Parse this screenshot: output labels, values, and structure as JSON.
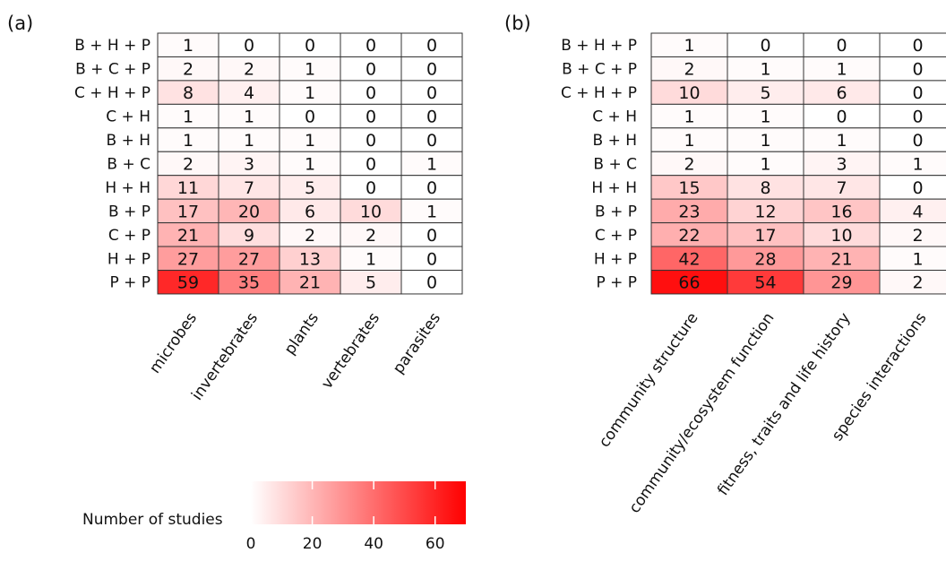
{
  "colors": {
    "low": "#ffffff",
    "high": "#ff0000",
    "grid": "#333333"
  },
  "chart_data": [
    {
      "type": "heatmap",
      "panel_label": "(a)",
      "rows": [
        "B + H + P",
        "B + C + P",
        "C + H + P",
        "C + H",
        "B + H",
        "B + C",
        "H + H",
        "B + P",
        "C + P",
        "H + P",
        "P + P"
      ],
      "columns": [
        "microbes",
        "invertebrates",
        "plants",
        "vertebrates",
        "parasites"
      ],
      "values": [
        [
          1,
          0,
          0,
          0,
          0
        ],
        [
          2,
          2,
          1,
          0,
          0
        ],
        [
          8,
          4,
          1,
          0,
          0
        ],
        [
          1,
          1,
          0,
          0,
          0
        ],
        [
          1,
          1,
          1,
          0,
          0
        ],
        [
          2,
          3,
          1,
          0,
          1
        ],
        [
          11,
          7,
          5,
          0,
          0
        ],
        [
          17,
          20,
          6,
          10,
          1
        ],
        [
          21,
          9,
          2,
          2,
          0
        ],
        [
          27,
          27,
          13,
          1,
          0
        ],
        [
          59,
          35,
          21,
          5,
          0
        ]
      ],
      "legend": {
        "title": "Number of studies",
        "range": [
          0,
          70
        ],
        "ticks": [
          0,
          20,
          40,
          60
        ]
      }
    },
    {
      "type": "heatmap",
      "panel_label": "(b)",
      "rows": [
        "B + H + P",
        "B + C + P",
        "C + H + P",
        "C + H",
        "B + H",
        "B + C",
        "H + H",
        "B + P",
        "C + P",
        "H + P",
        "P + P"
      ],
      "columns": [
        "community structure",
        "community/ecosystem function",
        "fitness, traits and life history",
        "species interactions"
      ],
      "values": [
        [
          1,
          0,
          0,
          0
        ],
        [
          2,
          1,
          1,
          0
        ],
        [
          10,
          5,
          6,
          0
        ],
        [
          1,
          1,
          0,
          0
        ],
        [
          1,
          1,
          1,
          0
        ],
        [
          2,
          1,
          3,
          1
        ],
        [
          15,
          8,
          7,
          0
        ],
        [
          23,
          12,
          16,
          4
        ],
        [
          22,
          17,
          10,
          2
        ],
        [
          42,
          28,
          21,
          1
        ],
        [
          66,
          54,
          29,
          2
        ]
      ]
    }
  ]
}
